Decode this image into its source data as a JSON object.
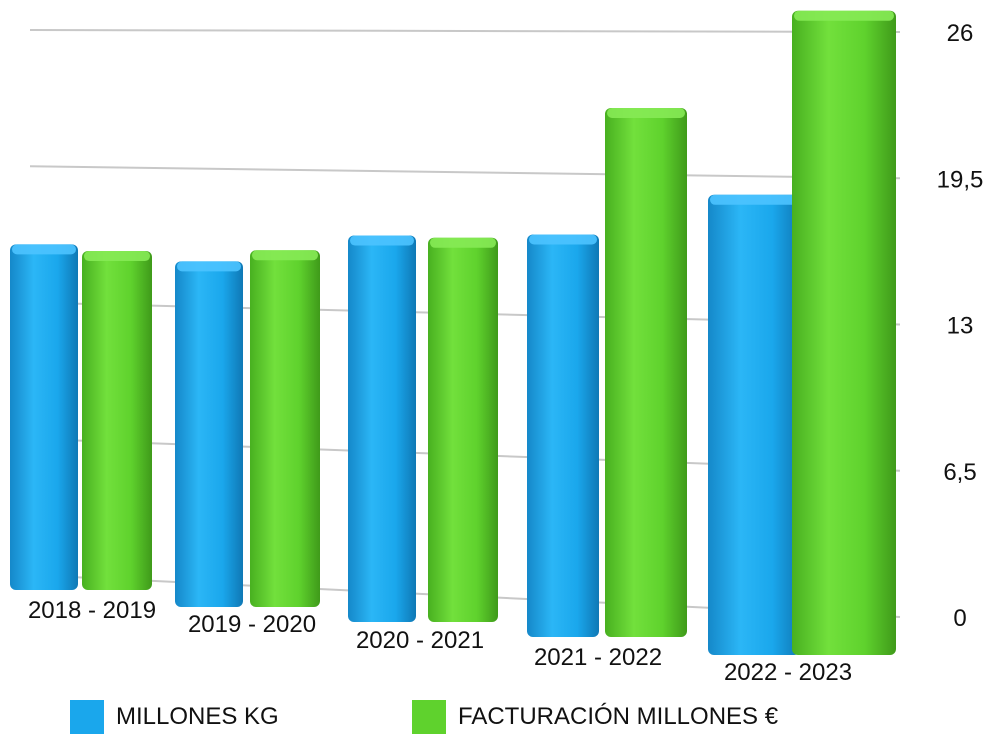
{
  "chart_data": {
    "type": "bar",
    "categories": [
      "2018 - 2019",
      "2019 - 2020",
      "2020 - 2021",
      "2021 - 2022",
      "2022 - 2023"
    ],
    "series": [
      {
        "name": "MILLONES KG",
        "color": "#1aa7ec",
        "values": [
          15.5,
          15.5,
          17.1,
          17.5,
          19.5
        ]
      },
      {
        "name": "FACTURACIÓN MILLONES €",
        "color": "#5fd22d",
        "values": [
          15.2,
          16.0,
          17.0,
          23.0,
          27.3
        ]
      }
    ],
    "y_ticks": [
      "26",
      "19,5",
      "13",
      "6,5",
      "0"
    ],
    "ylim": [
      0,
      26
    ],
    "y_axis_side": "right",
    "grid": true,
    "legend_position": "bottom"
  }
}
